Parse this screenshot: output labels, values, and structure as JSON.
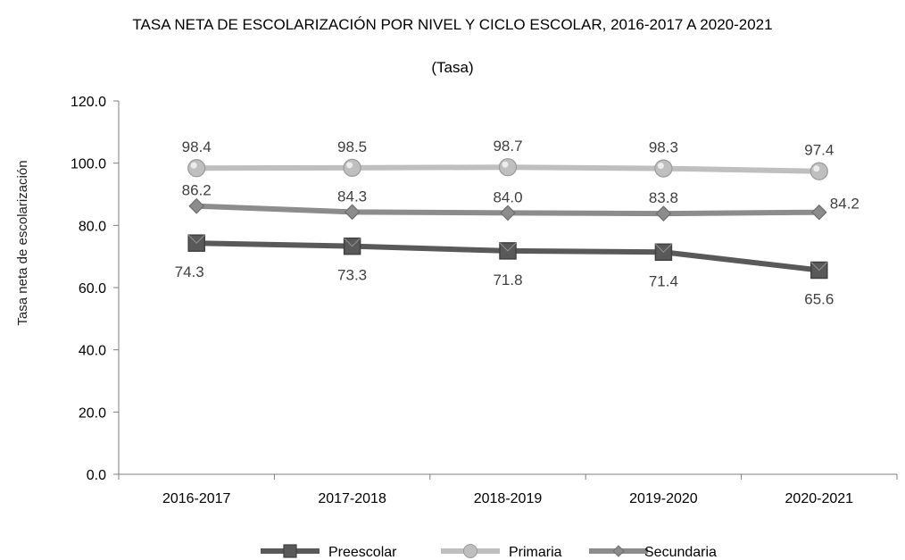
{
  "chart_data": {
    "type": "line",
    "title": "TASA NETA DE ESCOLARIZACIÓN POR NIVEL Y CICLO ESCOLAR, 2016-2017 A 2020-2021",
    "subtitle": "(Tasa)",
    "xlabel": "",
    "ylabel": "Tasa neta de escolarización",
    "ylim": [
      0,
      120
    ],
    "yticks": [
      "0.0",
      "20.0",
      "40.0",
      "60.0",
      "80.0",
      "100.0",
      "120.0"
    ],
    "categories": [
      "2016-2017",
      "2017-2018",
      "2018-2019",
      "2019-2020",
      "2020-2021"
    ],
    "grid": false,
    "legend_position": "bottom",
    "series": [
      {
        "name": "Preescolar",
        "values": [
          74.3,
          73.3,
          71.8,
          71.4,
          65.6
        ],
        "labels": [
          "74.3",
          "73.3",
          "71.8",
          "71.4",
          "65.6"
        ],
        "label_position": "below",
        "color": "#595959",
        "marker": "square"
      },
      {
        "name": "Primaria",
        "values": [
          98.4,
          98.5,
          98.7,
          98.3,
          97.4
        ],
        "labels": [
          "98.4",
          "98.5",
          "98.7",
          "98.3",
          "97.4"
        ],
        "label_position": "above",
        "color": "#bfbfbf",
        "marker": "circle"
      },
      {
        "name": "Secundaria",
        "values": [
          86.2,
          84.3,
          84.0,
          83.8,
          84.2
        ],
        "labels": [
          "86.2",
          "84.3",
          "84.0",
          "83.8",
          "84.2"
        ],
        "label_position": "above",
        "color": "#8c8c8c",
        "marker": "diamond"
      }
    ]
  }
}
